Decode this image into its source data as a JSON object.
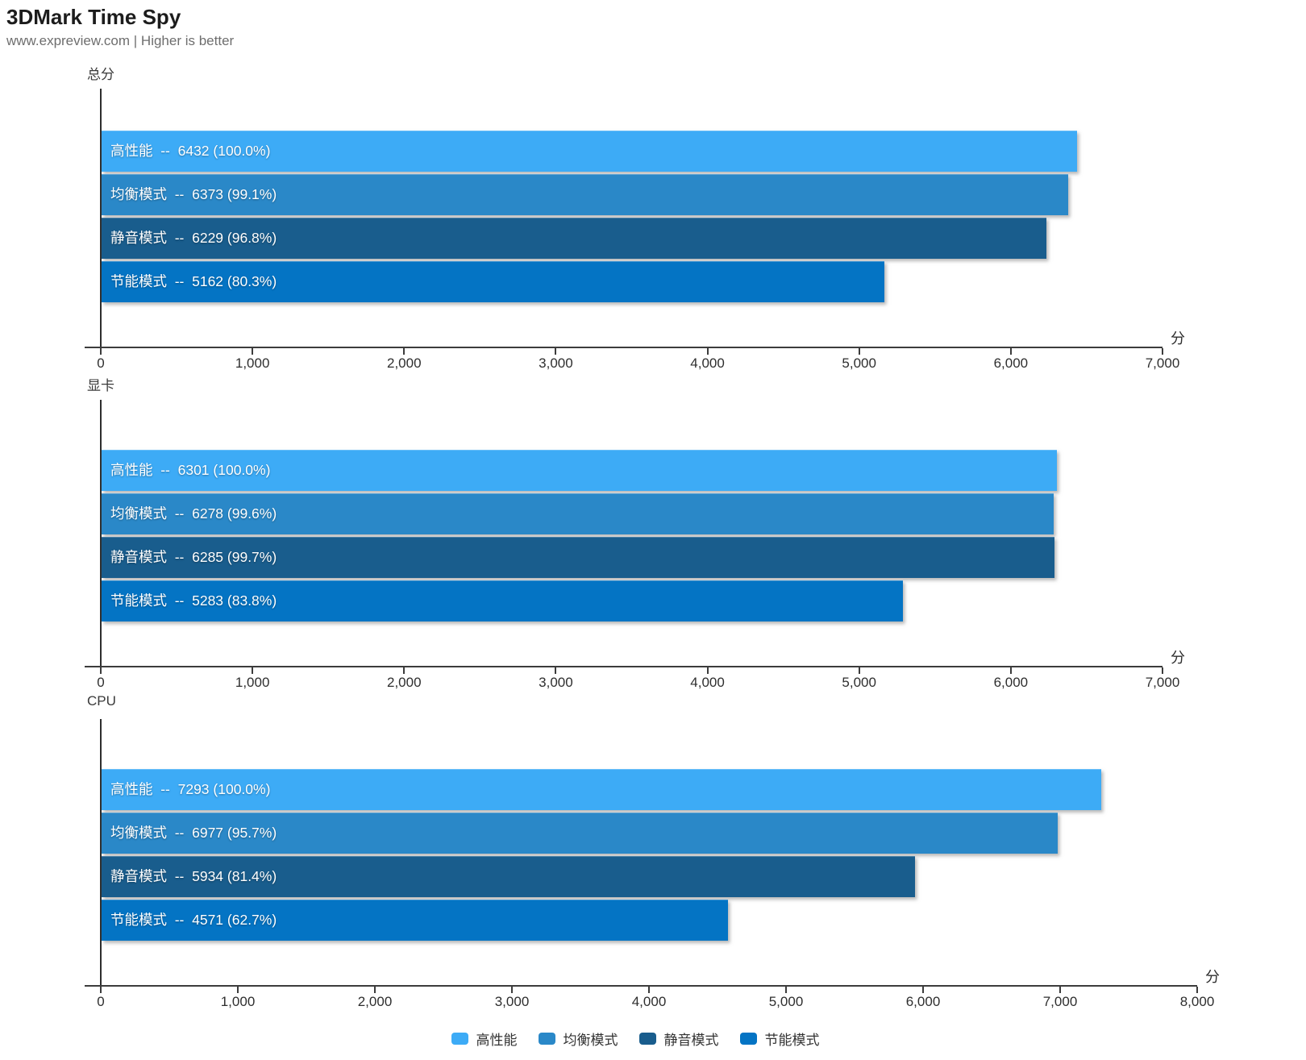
{
  "header": {
    "title": "3DMark Time Spy",
    "subtitle": "www.expreview.com | Higher is better"
  },
  "axis_unit": "分",
  "legend": [
    {
      "label": "高性能",
      "color": "#3dabf6"
    },
    {
      "label": "均衡模式",
      "color": "#2a88c8"
    },
    {
      "label": "静音模式",
      "color": "#195d8d"
    },
    {
      "label": "节能模式",
      "color": "#0474c4"
    }
  ],
  "chart_data": [
    {
      "type": "bar",
      "orientation": "horizontal",
      "title": "总分",
      "xlim": [
        0,
        7000
      ],
      "tick_step": 1000,
      "unit": "分",
      "grid": false,
      "bars": [
        {
          "name": "高性能",
          "value": 6432,
          "pct": "100.0%",
          "color": "#3dabf6"
        },
        {
          "name": "均衡模式",
          "value": 6373,
          "pct": "99.1%",
          "color": "#2a88c8"
        },
        {
          "name": "静音模式",
          "value": 6229,
          "pct": "96.8%",
          "color": "#195d8d"
        },
        {
          "name": "节能模式",
          "value": 5162,
          "pct": "80.3%",
          "color": "#0474c4"
        }
      ]
    },
    {
      "type": "bar",
      "orientation": "horizontal",
      "title": "显卡",
      "xlim": [
        0,
        7000
      ],
      "tick_step": 1000,
      "unit": "分",
      "grid": false,
      "bars": [
        {
          "name": "高性能",
          "value": 6301,
          "pct": "100.0%",
          "color": "#3dabf6"
        },
        {
          "name": "均衡模式",
          "value": 6278,
          "pct": "99.6%",
          "color": "#2a88c8"
        },
        {
          "name": "静音模式",
          "value": 6285,
          "pct": "99.7%",
          "color": "#195d8d"
        },
        {
          "name": "节能模式",
          "value": 5283,
          "pct": "83.8%",
          "color": "#0474c4"
        }
      ]
    },
    {
      "type": "bar",
      "orientation": "horizontal",
      "title": "CPU",
      "xlim": [
        0,
        8000
      ],
      "tick_step": 1000,
      "unit": "分",
      "grid": false,
      "bars": [
        {
          "name": "高性能",
          "value": 7293,
          "pct": "100.0%",
          "color": "#3dabf6"
        },
        {
          "name": "均衡模式",
          "value": 6977,
          "pct": "95.7%",
          "color": "#2a88c8"
        },
        {
          "name": "静音模式",
          "value": 5934,
          "pct": "81.4%",
          "color": "#195d8d"
        },
        {
          "name": "节能模式",
          "value": 4571,
          "pct": "62.7%",
          "color": "#0474c4"
        }
      ]
    }
  ]
}
